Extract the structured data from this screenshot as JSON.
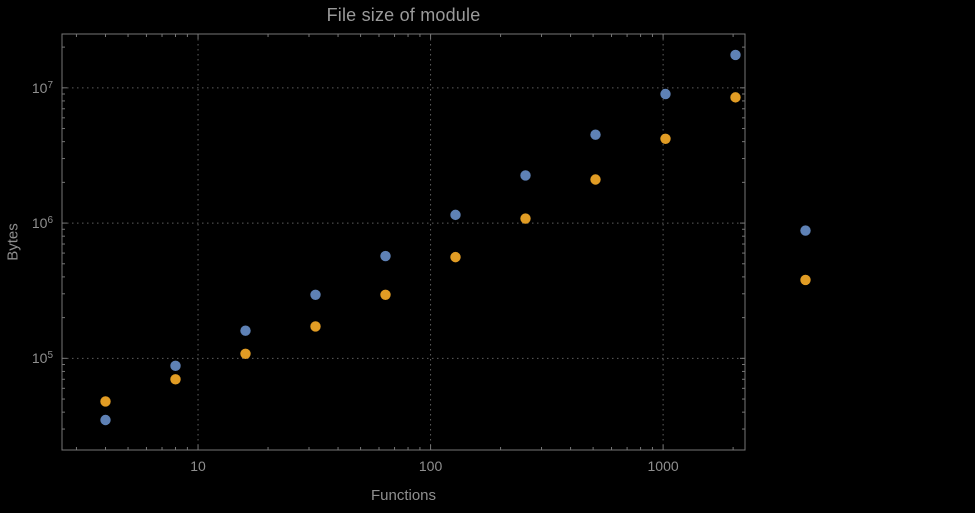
{
  "window": {
    "background": "#000000"
  },
  "chart_data": {
    "type": "scatter",
    "title": "File size of module",
    "xlabel": "Functions",
    "ylabel": "Bytes",
    "x_scale": "log",
    "y_scale": "log",
    "xlim": [
      2.6,
      2250
    ],
    "ylim": [
      21000,
      25000000
    ],
    "x_ticks": [
      10,
      100,
      1000
    ],
    "x_tick_labels": [
      "10",
      "100",
      "1000"
    ],
    "y_ticks": [
      100000,
      1000000,
      10000000
    ],
    "y_tick_labels": [
      "10^5",
      "10^6",
      "10^7"
    ],
    "grid": true,
    "grid_style": "dotted",
    "legend": null,
    "series": [
      {
        "name": "blue-series",
        "color": "#5E81B5",
        "points": [
          [
            4,
            35000
          ],
          [
            8,
            88000
          ],
          [
            16,
            160000
          ],
          [
            32,
            295000
          ],
          [
            64,
            570000
          ],
          [
            128,
            1150000
          ],
          [
            256,
            2250000
          ],
          [
            512,
            4500000
          ],
          [
            1024,
            9000000
          ],
          [
            2048,
            17500000
          ],
          [
            4096,
            880000
          ]
        ]
      },
      {
        "name": "orange-series",
        "color": "#E19C24",
        "points": [
          [
            4,
            48000
          ],
          [
            8,
            70000
          ],
          [
            16,
            108000
          ],
          [
            32,
            172000
          ],
          [
            64,
            295000
          ],
          [
            128,
            560000
          ],
          [
            256,
            1080000
          ],
          [
            512,
            2100000
          ],
          [
            1024,
            4200000
          ],
          [
            2048,
            8500000
          ],
          [
            4096,
            380000
          ]
        ]
      }
    ],
    "theme": {
      "background": "#000000",
      "frame_color": "#767676",
      "grid_color": "#5e5e5e",
      "tick_color": "#767676",
      "text_color": "#979797"
    }
  }
}
